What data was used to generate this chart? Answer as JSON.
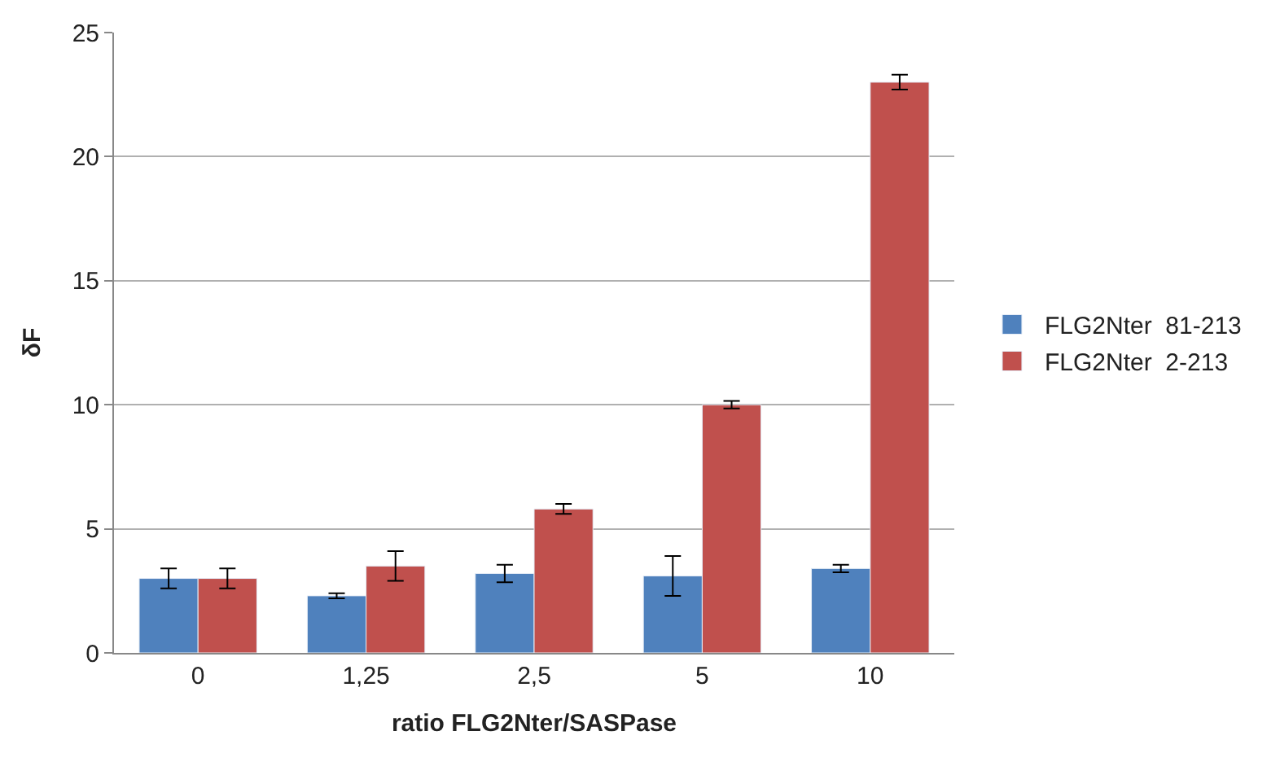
{
  "chart_data": {
    "type": "bar",
    "xlabel": "ratio FLG2Nter/SASPase",
    "ylabel": "δF",
    "categories": [
      "0",
      "1,25",
      "2,5",
      "5",
      "10"
    ],
    "series": [
      {
        "name": "FLG2Nter  81-213",
        "color": "#4f81bd",
        "values": [
          3.0,
          2.3,
          3.2,
          3.1,
          3.4
        ],
        "errors": [
          0.4,
          0.1,
          0.35,
          0.8,
          0.15
        ]
      },
      {
        "name": "FLG2Nter  2-213",
        "color": "#c0504d",
        "values": [
          3.0,
          3.5,
          5.8,
          10.0,
          23.0
        ],
        "errors": [
          0.4,
          0.6,
          0.2,
          0.15,
          0.3
        ]
      }
    ],
    "ylim": [
      0,
      25
    ],
    "yticks": [
      0,
      5,
      10,
      15,
      20,
      25
    ],
    "grid": "y",
    "legend": "right"
  }
}
